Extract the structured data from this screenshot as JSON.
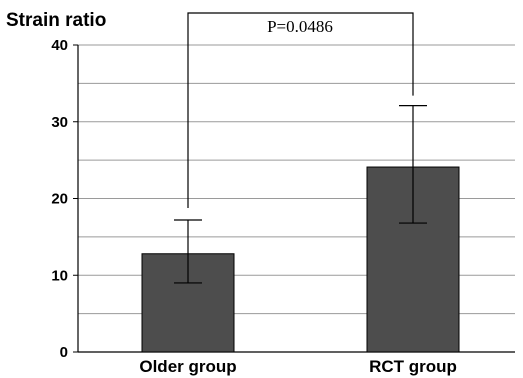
{
  "chart_data": {
    "type": "bar",
    "title": "Strain ratio",
    "categories": [
      "Older group",
      "RCT group"
    ],
    "series": [
      {
        "values": [
          12.8,
          24.1
        ],
        "error_low": [
          9.0,
          16.8
        ],
        "error_high": [
          17.2,
          32.1
        ]
      }
    ],
    "ylim": [
      0,
      40
    ],
    "yticks": [
      "0",
      "10",
      "20",
      "30",
      "40"
    ],
    "grid": true,
    "bar_color": "#4d4d4d",
    "annotation": "P=0.0486"
  }
}
